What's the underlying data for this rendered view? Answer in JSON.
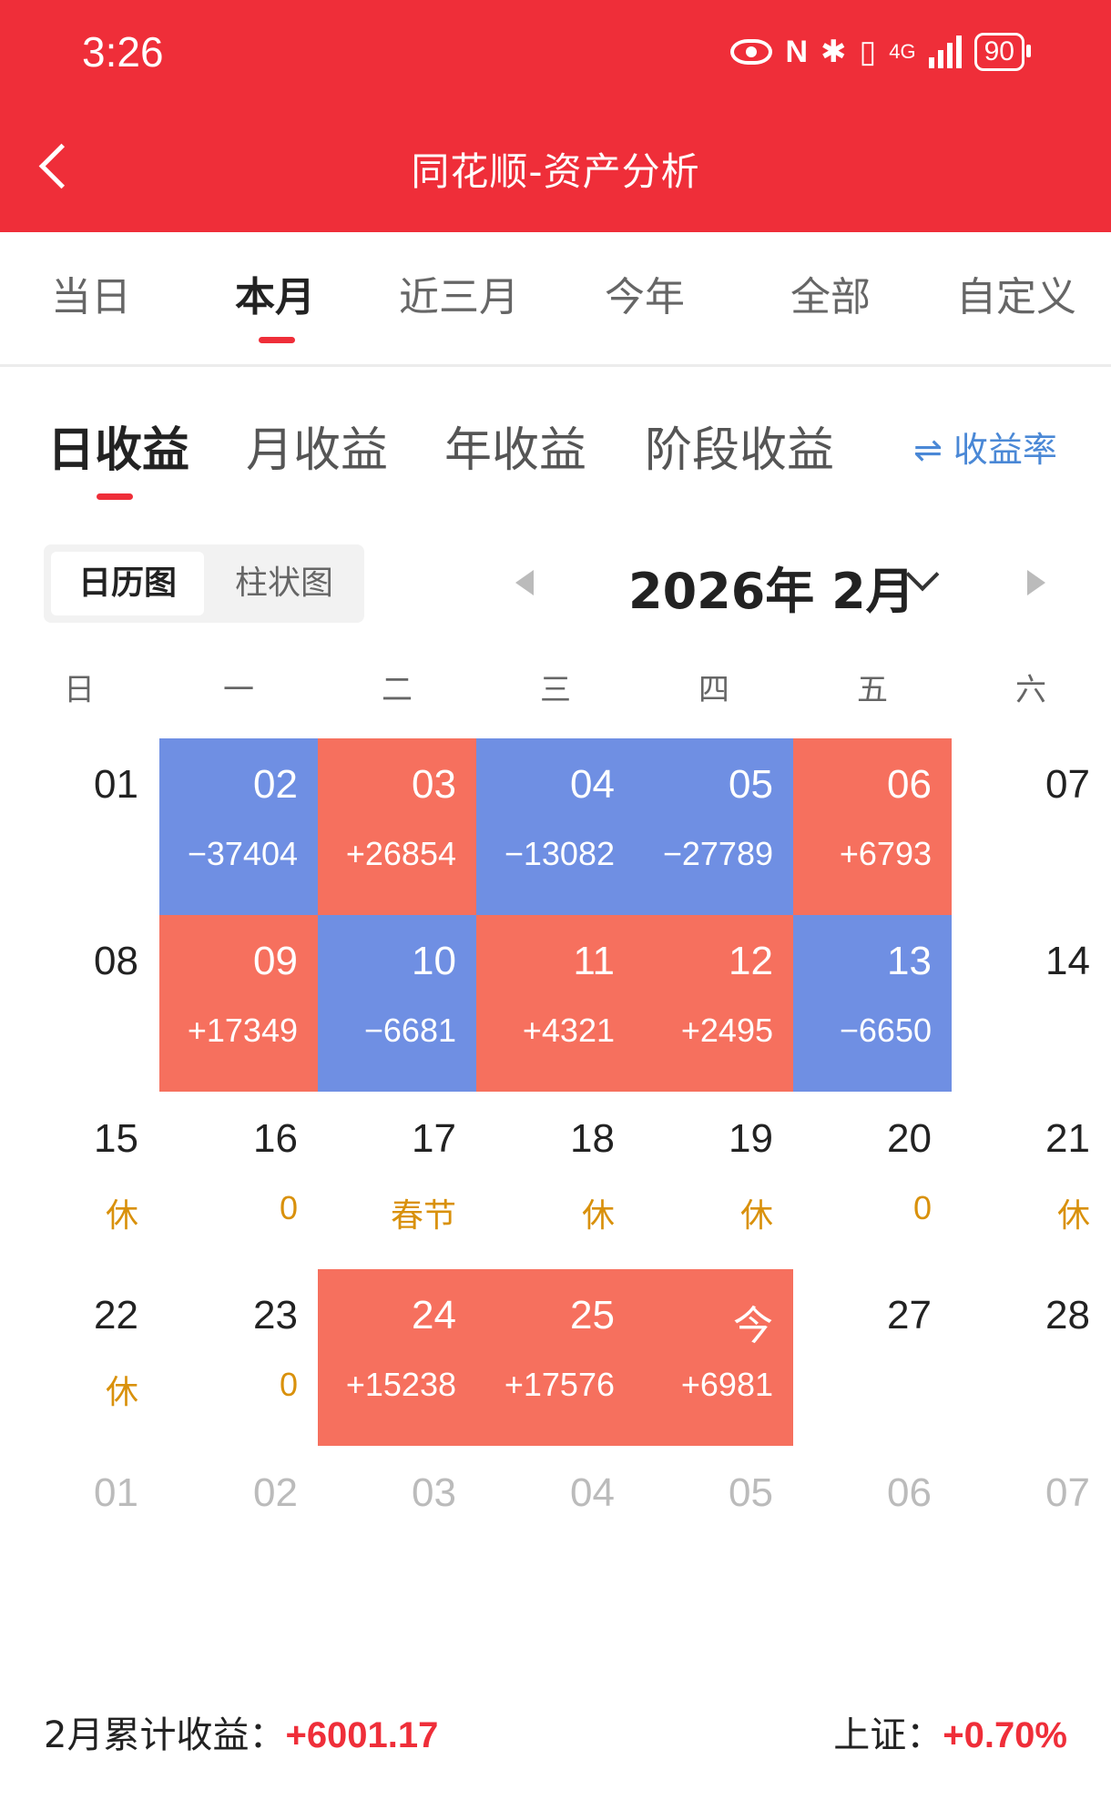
{
  "status_bar": {
    "time": "3:26",
    "network": "4G",
    "battery": "90"
  },
  "header": {
    "title": "同花顺-资产分析"
  },
  "period_tabs": [
    {
      "label": "当日",
      "active": false
    },
    {
      "label": "本月",
      "active": true
    },
    {
      "label": "近三月",
      "active": false
    },
    {
      "label": "今年",
      "active": false
    },
    {
      "label": "全部",
      "active": false
    },
    {
      "label": "自定义",
      "active": false
    }
  ],
  "profit_tabs": [
    {
      "label": "日收益",
      "active": true
    },
    {
      "label": "月收益",
      "active": false
    },
    {
      "label": "年收益",
      "active": false
    },
    {
      "label": "阶段收益",
      "active": false
    }
  ],
  "rate_toggle": {
    "icon": "swap-icon",
    "label": "收益率"
  },
  "view_toggle": {
    "calendar": "日历图",
    "bar": "柱状图",
    "selected": "日历图"
  },
  "month_selector": {
    "label": "2026年 2月"
  },
  "weekdays": [
    "日",
    "一",
    "二",
    "三",
    "四",
    "五",
    "六"
  ],
  "weeks": [
    [
      {
        "day": "01",
        "value": "",
        "type": "plain"
      },
      {
        "day": "02",
        "value": "−37404",
        "type": "blue"
      },
      {
        "day": "03",
        "value": "+26854",
        "type": "red"
      },
      {
        "day": "04",
        "value": "−13082",
        "type": "blue"
      },
      {
        "day": "05",
        "value": "−27789",
        "type": "blue"
      },
      {
        "day": "06",
        "value": "+6793",
        "type": "red"
      },
      {
        "day": "07",
        "value": "",
        "type": "plain"
      }
    ],
    [
      {
        "day": "08",
        "value": "",
        "type": "plain"
      },
      {
        "day": "09",
        "value": "+17349",
        "type": "red"
      },
      {
        "day": "10",
        "value": "−6681",
        "type": "blue"
      },
      {
        "day": "11",
        "value": "+4321",
        "type": "red"
      },
      {
        "day": "12",
        "value": "+2495",
        "type": "red"
      },
      {
        "day": "13",
        "value": "−6650",
        "type": "blue"
      },
      {
        "day": "14",
        "value": "",
        "type": "plain"
      }
    ],
    [
      {
        "day": "15",
        "value": "休",
        "type": "rest"
      },
      {
        "day": "16",
        "value": "0",
        "type": "rest"
      },
      {
        "day": "17",
        "value": "春节",
        "type": "rest"
      },
      {
        "day": "18",
        "value": "休",
        "type": "rest"
      },
      {
        "day": "19",
        "value": "休",
        "type": "rest"
      },
      {
        "day": "20",
        "value": "0",
        "type": "rest"
      },
      {
        "day": "21",
        "value": "休",
        "type": "rest"
      }
    ],
    [
      {
        "day": "22",
        "value": "休",
        "type": "rest"
      },
      {
        "day": "23",
        "value": "0",
        "type": "rest"
      },
      {
        "day": "24",
        "value": "+15238",
        "type": "red"
      },
      {
        "day": "25",
        "value": "+17576",
        "type": "red"
      },
      {
        "day": "今",
        "value": "+6981",
        "type": "red"
      },
      {
        "day": "27",
        "value": "",
        "type": "plain"
      },
      {
        "day": "28",
        "value": "",
        "type": "plain"
      }
    ],
    [
      {
        "day": "01",
        "value": "",
        "type": "other"
      },
      {
        "day": "02",
        "value": "",
        "type": "other"
      },
      {
        "day": "03",
        "value": "",
        "type": "other"
      },
      {
        "day": "04",
        "value": "",
        "type": "other"
      },
      {
        "day": "05",
        "value": "",
        "type": "other"
      },
      {
        "day": "06",
        "value": "",
        "type": "other"
      },
      {
        "day": "07",
        "value": "",
        "type": "other"
      }
    ]
  ],
  "footer": {
    "cumulative_label": "2月累计收益：",
    "cumulative_value": "+6001.17",
    "index_label": "上证：",
    "index_value": "+0.70%"
  },
  "colors": {
    "brand": "#ef2e39",
    "gain": "#f6705e",
    "loss": "#6f8fe3",
    "rest": "#d9910c",
    "link": "#4a88d6"
  }
}
